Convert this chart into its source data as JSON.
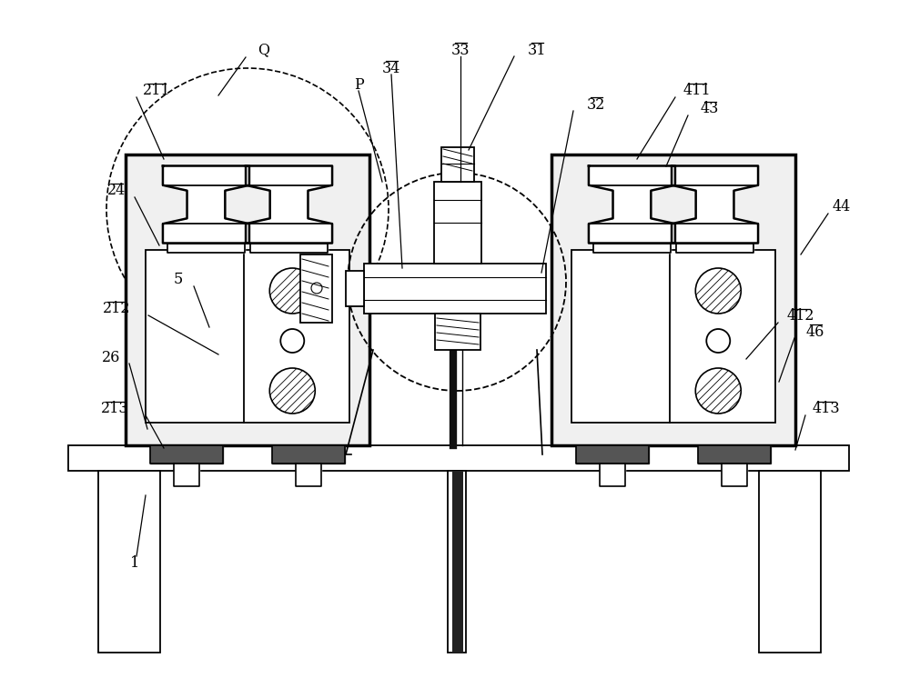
{
  "bg_color": "#ffffff",
  "line_color": "#000000",
  "label_color": "#000000",
  "fig_width": 10.0,
  "fig_height": 7.46,
  "dpi": 100
}
